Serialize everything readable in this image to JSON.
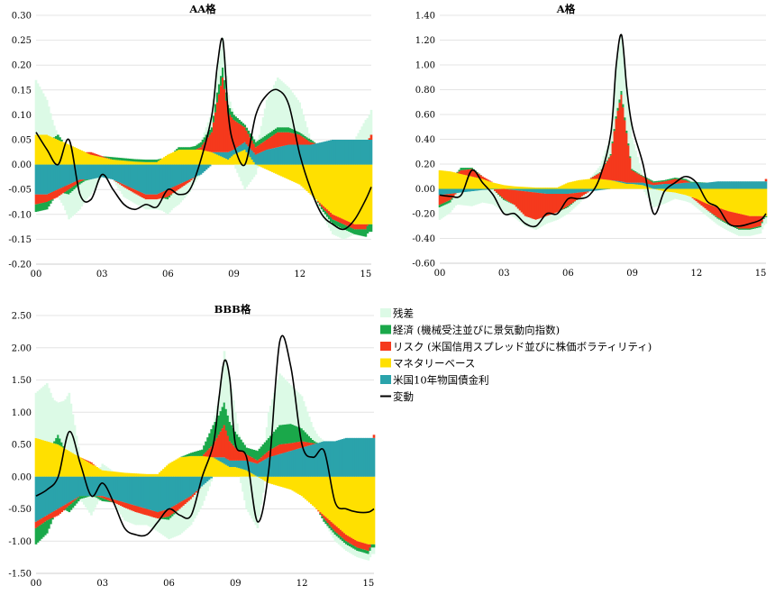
{
  "colors": {
    "residual": "#dcfae6",
    "economy": "#1aa84a",
    "risk": "#f5391c",
    "money": "#ffe000",
    "ust": "#2aa3ab",
    "change": "#000000",
    "grid": "#e4e4e4"
  },
  "legend": {
    "items": [
      {
        "key": "residual",
        "label": "残差",
        "kind": "box"
      },
      {
        "key": "economy",
        "label": "経済 (機械受注並びに景気動向指数)",
        "kind": "box"
      },
      {
        "key": "risk",
        "label": "リスク (米国信用スプレッド並びに株価ボラティリティ)",
        "kind": "box"
      },
      {
        "key": "money",
        "label": "マネタリーベース",
        "kind": "box"
      },
      {
        "key": "ust",
        "label": "米国10年物国債金利",
        "kind": "box"
      },
      {
        "key": "change",
        "label": "変動",
        "kind": "line"
      }
    ]
  },
  "chart_data": [
    {
      "id": "aa",
      "type": "area",
      "title": "AA格",
      "xlim": [
        2000,
        2015.25
      ],
      "x_ticks": [
        {
          "v": 2000,
          "label": "00"
        },
        {
          "v": 2003,
          "label": "03"
        },
        {
          "v": 2006,
          "label": "06"
        },
        {
          "v": 2009,
          "label": "09"
        },
        {
          "v": 2012,
          "label": "12"
        },
        {
          "v": 2015,
          "label": "15"
        }
      ],
      "ylim": [
        -0.2,
        0.3
      ],
      "y_ticks": [
        "-0.20",
        "-0.15",
        "-0.10",
        "-0.05",
        "0.00",
        "0.05",
        "0.10",
        "0.15",
        "0.20",
        "0.25",
        "0.30"
      ],
      "x": [
        2000,
        2000.5,
        2001,
        2001.5,
        2002,
        2002.5,
        2003,
        2003.5,
        2004,
        2004.5,
        2005,
        2005.5,
        2006,
        2006.5,
        2007,
        2007.5,
        2008,
        2008.25,
        2008.5,
        2008.75,
        2009,
        2009.5,
        2010,
        2010.5,
        2011,
        2011.5,
        2012,
        2012.5,
        2013,
        2013.5,
        2014,
        2014.5,
        2015,
        2015.25
      ],
      "series": [
        {
          "key": "money",
          "values": [
            0.06,
            0.06,
            0.05,
            0.04,
            0.03,
            0.02,
            0.015,
            0.01,
            0.008,
            0.006,
            0.005,
            0.005,
            0.02,
            0.03,
            0.03,
            0.03,
            0.025,
            0.02,
            0.015,
            0.01,
            0.02,
            0.03,
            0.0,
            -0.01,
            -0.02,
            -0.03,
            -0.04,
            -0.06,
            -0.08,
            -0.1,
            -0.11,
            -0.12,
            -0.12,
            -0.12
          ]
        },
        {
          "key": "ust",
          "values": [
            -0.06,
            -0.06,
            -0.05,
            -0.04,
            -0.03,
            -0.03,
            -0.025,
            -0.03,
            -0.04,
            -0.05,
            -0.06,
            -0.06,
            -0.05,
            -0.04,
            -0.03,
            -0.02,
            0.0,
            0.005,
            0.01,
            0.015,
            0.01,
            0.015,
            0.02,
            0.03,
            0.035,
            0.04,
            0.04,
            0.04,
            0.045,
            0.05,
            0.05,
            0.05,
            0.05,
            0.05
          ]
        },
        {
          "key": "risk",
          "values": [
            -0.02,
            -0.015,
            -0.015,
            -0.01,
            -0.005,
            0.005,
            0.002,
            0.0,
            -0.005,
            -0.008,
            -0.01,
            -0.01,
            -0.015,
            -0.01,
            -0.005,
            0.005,
            0.04,
            0.1,
            0.15,
            0.08,
            0.06,
            0.03,
            0.015,
            0.02,
            0.03,
            0.025,
            0.02,
            0.005,
            -0.005,
            -0.01,
            -0.01,
            -0.01,
            -0.01,
            0.01
          ]
        },
        {
          "key": "economy",
          "values": [
            -0.015,
            -0.015,
            0.01,
            -0.01,
            -0.005,
            0.0,
            0.0,
            0.005,
            0.005,
            0.005,
            0.005,
            0.005,
            -0.005,
            0.005,
            0.005,
            0.01,
            0.01,
            0.02,
            0.02,
            0.015,
            0.01,
            0.005,
            0.01,
            0.01,
            0.01,
            0.01,
            0.005,
            0.005,
            -0.005,
            -0.01,
            -0.01,
            -0.01,
            -0.015,
            -0.015
          ]
        },
        {
          "key": "residual",
          "values": [
            0.11,
            0.07,
            0.0,
            -0.05,
            -0.05,
            -0.03,
            0.0,
            0.0,
            -0.02,
            -0.02,
            -0.02,
            -0.02,
            -0.03,
            -0.03,
            -0.02,
            0.0,
            0.03,
            0.04,
            0.06,
            0.02,
            0.0,
            -0.05,
            -0.02,
            0.07,
            0.1,
            0.08,
            0.06,
            0.0,
            -0.01,
            -0.02,
            -0.02,
            0.0,
            0.04,
            0.05
          ]
        },
        {
          "key": "change",
          "values": [
            0.065,
            0.03,
            0.0,
            0.05,
            -0.06,
            -0.07,
            -0.02,
            -0.05,
            -0.08,
            -0.09,
            -0.08,
            -0.085,
            -0.05,
            -0.06,
            -0.05,
            0.01,
            0.1,
            0.2,
            0.25,
            0.1,
            0.04,
            0.0,
            0.1,
            0.14,
            0.15,
            0.12,
            0.02,
            -0.05,
            -0.1,
            -0.12,
            -0.13,
            -0.11,
            -0.07,
            -0.045
          ]
        }
      ]
    },
    {
      "id": "a",
      "type": "area",
      "title": "A格",
      "xlim": [
        2000,
        2015.25
      ],
      "x_ticks": [
        {
          "v": 2000,
          "label": "00"
        },
        {
          "v": 2003,
          "label": "03"
        },
        {
          "v": 2006,
          "label": "06"
        },
        {
          "v": 2009,
          "label": "09"
        },
        {
          "v": 2012,
          "label": "12"
        },
        {
          "v": 2015,
          "label": "15"
        }
      ],
      "ylim": [
        -0.6,
        1.4
      ],
      "y_ticks": [
        "-0.60",
        "-0.40",
        "-0.20",
        "0.00",
        "0.20",
        "0.40",
        "0.60",
        "0.80",
        "1.00",
        "1.20",
        "1.40"
      ],
      "x": [
        2000,
        2000.5,
        2001,
        2001.5,
        2002,
        2002.5,
        2003,
        2003.5,
        2004,
        2004.5,
        2005,
        2005.5,
        2006,
        2006.5,
        2007,
        2007.5,
        2008,
        2008.25,
        2008.5,
        2008.75,
        2009,
        2009.5,
        2010,
        2010.5,
        2011,
        2011.5,
        2012,
        2012.5,
        2013,
        2013.5,
        2014,
        2014.5,
        2015,
        2015.25
      ],
      "series": [
        {
          "key": "money",
          "values": [
            0.15,
            0.14,
            0.12,
            0.1,
            0.08,
            0.05,
            0.03,
            0.02,
            0.015,
            0.01,
            0.01,
            0.01,
            0.05,
            0.07,
            0.08,
            0.08,
            0.07,
            0.06,
            0.05,
            0.04,
            0.04,
            0.03,
            0.0,
            -0.02,
            -0.03,
            -0.05,
            -0.08,
            -0.12,
            -0.15,
            -0.18,
            -0.2,
            -0.22,
            -0.22,
            -0.22
          ]
        },
        {
          "key": "ust",
          "values": [
            -0.05,
            -0.04,
            -0.03,
            -0.02,
            -0.01,
            -0.005,
            0.0,
            -0.01,
            -0.02,
            -0.03,
            -0.04,
            -0.04,
            -0.04,
            -0.03,
            -0.02,
            -0.01,
            0.0,
            0.005,
            0.01,
            0.01,
            0.01,
            0.02,
            0.03,
            0.04,
            0.04,
            0.05,
            0.05,
            0.05,
            0.06,
            0.06,
            0.06,
            0.06,
            0.06,
            0.06
          ]
        },
        {
          "key": "risk",
          "values": [
            -0.08,
            -0.05,
            0.03,
            0.06,
            0.02,
            0.0,
            -0.08,
            -0.12,
            -0.2,
            -0.22,
            -0.18,
            -0.15,
            -0.1,
            -0.05,
            0.0,
            0.05,
            0.2,
            0.5,
            0.7,
            0.4,
            0.1,
            0.05,
            0.02,
            0.02,
            0.04,
            0.02,
            -0.02,
            -0.05,
            -0.08,
            -0.1,
            -0.12,
            -0.1,
            -0.08,
            0.02
          ]
        },
        {
          "key": "economy",
          "values": [
            -0.02,
            -0.02,
            0.02,
            0.01,
            0.0,
            0.0,
            -0.01,
            0.0,
            0.0,
            0.0,
            0.0,
            0.0,
            -0.01,
            0.0,
            0.0,
            0.005,
            0.01,
            0.02,
            0.03,
            0.02,
            0.01,
            0.005,
            0.01,
            0.01,
            0.01,
            0.01,
            0.005,
            0.0,
            -0.01,
            -0.01,
            -0.01,
            -0.01,
            -0.01,
            -0.01
          ]
        },
        {
          "key": "residual",
          "values": [
            -0.1,
            -0.08,
            -0.1,
            -0.12,
            -0.1,
            -0.12,
            -0.1,
            -0.1,
            -0.08,
            -0.08,
            -0.06,
            -0.06,
            -0.05,
            -0.04,
            0.0,
            0.05,
            0.15,
            0.4,
            0.45,
            0.35,
            0.25,
            0.0,
            -0.15,
            -0.1,
            -0.05,
            -0.05,
            -0.05,
            -0.05,
            -0.05,
            -0.05,
            -0.05,
            -0.05,
            -0.05,
            -0.05
          ]
        },
        {
          "key": "change",
          "values": [
            -0.05,
            -0.06,
            -0.05,
            0.15,
            0.05,
            -0.05,
            -0.2,
            -0.2,
            -0.28,
            -0.3,
            -0.2,
            -0.2,
            -0.08,
            -0.08,
            -0.05,
            0.1,
            0.45,
            1.0,
            1.24,
            0.8,
            0.5,
            0.2,
            -0.2,
            -0.02,
            0.05,
            0.1,
            0.05,
            -0.1,
            -0.15,
            -0.28,
            -0.3,
            -0.28,
            -0.25,
            -0.2
          ]
        }
      ]
    },
    {
      "id": "bbb",
      "type": "area",
      "title": "BBB格",
      "xlim": [
        2000,
        2015.25
      ],
      "x_ticks": [
        {
          "v": 2000,
          "label": "00"
        },
        {
          "v": 2003,
          "label": "03"
        },
        {
          "v": 2006,
          "label": "06"
        },
        {
          "v": 2009,
          "label": "09"
        },
        {
          "v": 2012,
          "label": "12"
        },
        {
          "v": 2015,
          "label": "15"
        }
      ],
      "ylim": [
        -1.5,
        2.5
      ],
      "y_ticks": [
        "-1.50",
        "-1.00",
        "-0.50",
        "0.00",
        "0.50",
        "1.00",
        "1.50",
        "2.00",
        "2.50"
      ],
      "x": [
        2000,
        2000.5,
        2001,
        2001.5,
        2002,
        2002.5,
        2003,
        2003.5,
        2004,
        2004.5,
        2005,
        2005.5,
        2006,
        2006.5,
        2007,
        2007.5,
        2008,
        2008.25,
        2008.5,
        2008.75,
        2009,
        2009.5,
        2010,
        2010.5,
        2011,
        2011.5,
        2012,
        2012.5,
        2013,
        2013.5,
        2014,
        2014.5,
        2015,
        2015.25
      ],
      "series": [
        {
          "key": "money",
          "values": [
            0.6,
            0.55,
            0.5,
            0.4,
            0.3,
            0.2,
            0.1,
            0.08,
            0.06,
            0.05,
            0.04,
            0.04,
            0.2,
            0.3,
            0.32,
            0.32,
            0.3,
            0.25,
            0.2,
            0.15,
            0.15,
            0.1,
            0.0,
            -0.1,
            -0.15,
            -0.2,
            -0.3,
            -0.45,
            -0.6,
            -0.75,
            -0.9,
            -1.0,
            -1.05,
            -1.05
          ]
        },
        {
          "key": "ust",
          "values": [
            -0.7,
            -0.6,
            -0.5,
            -0.4,
            -0.3,
            -0.3,
            -0.3,
            -0.35,
            -0.4,
            -0.45,
            -0.5,
            -0.55,
            -0.5,
            -0.4,
            -0.3,
            -0.15,
            0.0,
            0.05,
            0.1,
            0.1,
            0.1,
            0.15,
            0.2,
            0.3,
            0.35,
            0.4,
            0.45,
            0.5,
            0.55,
            0.55,
            0.6,
            0.6,
            0.6,
            0.6
          ]
        },
        {
          "key": "risk",
          "values": [
            -0.1,
            -0.08,
            -0.1,
            -0.05,
            0.0,
            0.02,
            -0.03,
            -0.05,
            -0.08,
            -0.1,
            -0.1,
            -0.1,
            -0.12,
            -0.1,
            -0.05,
            0.0,
            0.2,
            0.35,
            0.5,
            0.3,
            0.2,
            0.1,
            0.05,
            0.1,
            0.15,
            0.12,
            0.1,
            0.02,
            -0.05,
            -0.1,
            -0.1,
            -0.1,
            -0.1,
            0.05
          ]
        },
        {
          "key": "economy",
          "values": [
            -0.25,
            -0.2,
            0.15,
            -0.1,
            -0.05,
            0.0,
            -0.05,
            0.0,
            0.0,
            0.0,
            0.0,
            0.0,
            -0.05,
            0.0,
            0.05,
            0.1,
            0.3,
            0.3,
            0.35,
            0.3,
            0.25,
            0.1,
            0.15,
            0.2,
            0.3,
            0.3,
            0.2,
            0.05,
            -0.05,
            -0.05,
            -0.05,
            -0.05,
            -0.05,
            -0.05
          ]
        },
        {
          "key": "residual",
          "values": [
            0.7,
            0.9,
            0.5,
            0.9,
            0.0,
            -0.3,
            0.1,
            0.0,
            -0.2,
            -0.2,
            -0.15,
            -0.2,
            -0.3,
            -0.4,
            -0.4,
            -0.3,
            0.0,
            0.3,
            0.8,
            0.7,
            0.3,
            -0.5,
            -0.8,
            0.4,
            0.8,
            0.6,
            0.5,
            0.2,
            0.0,
            -0.1,
            -0.1,
            -0.1,
            -0.1,
            -0.1
          ]
        },
        {
          "key": "change",
          "values": [
            -0.3,
            -0.2,
            0.0,
            0.7,
            0.2,
            -0.3,
            -0.1,
            -0.4,
            -0.8,
            -0.9,
            -0.9,
            -0.7,
            -0.5,
            -0.6,
            -0.6,
            0.0,
            0.5,
            1.2,
            1.8,
            1.5,
            0.5,
            0.3,
            -0.7,
            0.1,
            2.1,
            1.7,
            0.5,
            0.3,
            0.4,
            -0.4,
            -0.5,
            -0.55,
            -0.55,
            -0.5
          ]
        }
      ]
    }
  ]
}
